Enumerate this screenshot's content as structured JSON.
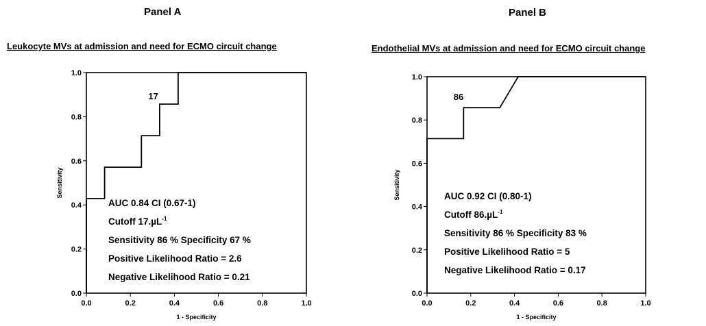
{
  "panels": [
    {
      "label": "Panel A",
      "title": "Leukocyte MVs at admission and need for ECMO circuit change"
    },
    {
      "label": "Panel B",
      "title": "Endothelial MVs at admission and need for ECMO circuit change"
    }
  ],
  "chart_data": [
    {
      "type": "line",
      "title": "Leukocyte MVs at admission and need for ECMO circuit change",
      "xlabel": "1 - Specificity",
      "ylabel": "Sensitivity",
      "xlim": [
        0,
        1
      ],
      "ylim": [
        0,
        1
      ],
      "xticks": [
        "0.0",
        "0.2",
        "0.4",
        "0.6",
        "0.8",
        "1.0"
      ],
      "yticks": [
        "0.0",
        "0.2",
        "0.4",
        "0.6",
        "0.8",
        "1.0"
      ],
      "x": [
        0,
        0,
        0.083,
        0.083,
        0.25,
        0.25,
        0.333,
        0.333,
        0.417,
        0.417,
        1
      ],
      "y": [
        0,
        0.429,
        0.429,
        0.571,
        0.571,
        0.714,
        0.714,
        0.857,
        0.857,
        1,
        1
      ],
      "point_label": {
        "text": "17",
        "x": 0.333,
        "y": 0.857
      },
      "annotations": [
        {
          "text": "AUC 0.84 CI (0.67-1)"
        },
        {
          "text": "Cutoff 17.µL",
          "sup": "-1"
        },
        {
          "text": "Sensitivity 86 % Specificity 67 %"
        },
        {
          "text": "Positive Likelihood Ratio = 2.6"
        },
        {
          "text": "Negative Likelihood Ratio = 0.21"
        }
      ]
    },
    {
      "type": "line",
      "title": "Endothelial MVs at admission and need for ECMO circuit change",
      "xlabel": "1 - Specificity",
      "ylabel": "Sensitivity",
      "xlim": [
        0,
        1
      ],
      "ylim": [
        0,
        1
      ],
      "xticks": [
        "0.0",
        "0.2",
        "0.4",
        "0.6",
        "0.8",
        "1.0"
      ],
      "yticks": [
        "0.0",
        "0.2",
        "0.4",
        "0.6",
        "0.8",
        "1.0"
      ],
      "x": [
        0,
        0,
        0.167,
        0.167,
        0.333,
        0.417,
        1
      ],
      "y": [
        0,
        0.714,
        0.714,
        0.857,
        0.857,
        1,
        1
      ],
      "point_label": {
        "text": "86",
        "x": 0.167,
        "y": 0.857
      },
      "annotations": [
        {
          "text": "AUC 0.92 CI (0.80-1)"
        },
        {
          "text": "Cutoff 86.µL",
          "sup": "-1"
        },
        {
          "text": "Sensitivity 86 % Specificity 83 %"
        },
        {
          "text": "Positive Likelihood Ratio = 5"
        },
        {
          "text": "Negative Likelihood Ratio  = 0.17"
        }
      ]
    }
  ]
}
